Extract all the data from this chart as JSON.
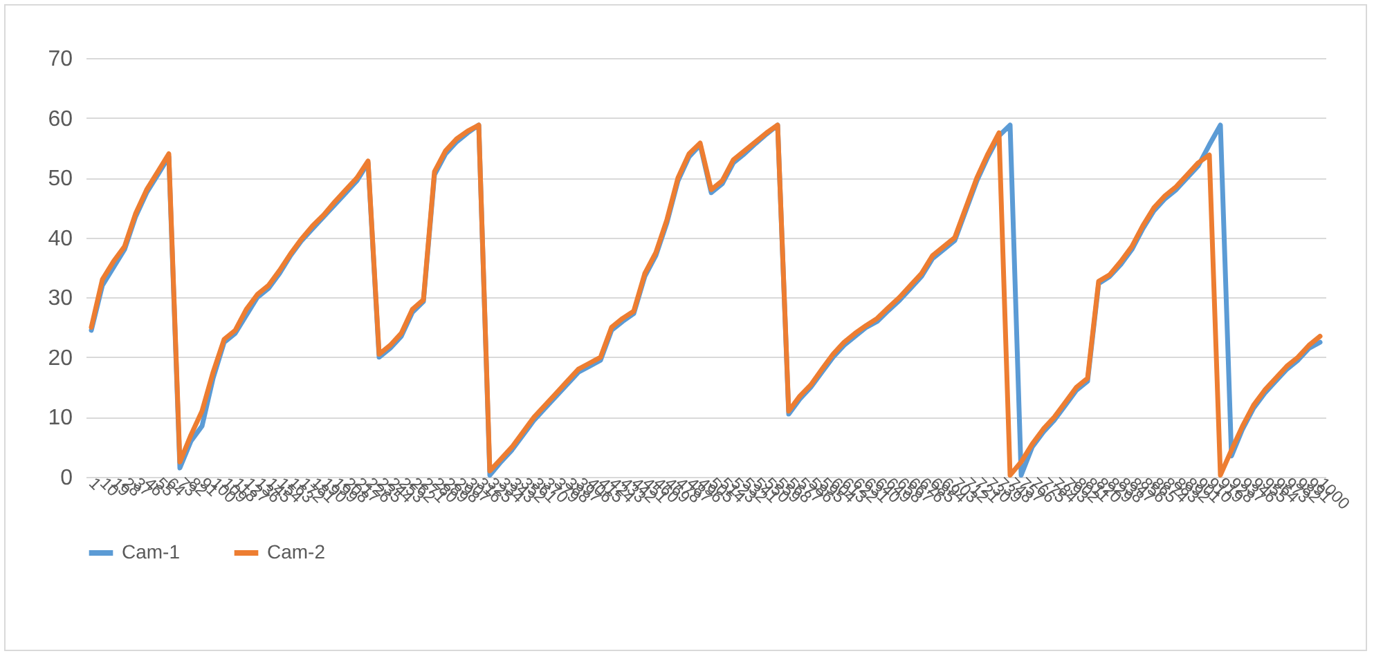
{
  "chart_data": {
    "type": "line",
    "categories": [
      "1",
      "10",
      "19",
      "28",
      "37",
      "46",
      "55",
      "64",
      "73",
      "82",
      "91",
      "100",
      "109",
      "118",
      "127",
      "136",
      "145",
      "154",
      "163",
      "172",
      "181",
      "190",
      "199",
      "208",
      "217",
      "226",
      "235",
      "244",
      "253",
      "262",
      "271",
      "280",
      "289",
      "298",
      "307",
      "316",
      "325",
      "334",
      "343",
      "352",
      "361",
      "370",
      "379",
      "388",
      "397",
      "406",
      "415",
      "424",
      "433",
      "442",
      "451",
      "460",
      "469",
      "478",
      "487",
      "496",
      "505",
      "514",
      "523",
      "532",
      "541",
      "550",
      "559",
      "568",
      "577",
      "586",
      "595",
      "604",
      "613",
      "622",
      "631",
      "640",
      "649",
      "658",
      "667",
      "676",
      "685",
      "694",
      "703",
      "712",
      "721",
      "730",
      "739",
      "748",
      "757",
      "766",
      "775",
      "784",
      "793",
      "802",
      "811",
      "820",
      "829",
      "838",
      "847",
      "856",
      "865",
      "874",
      "883",
      "892",
      "901",
      "910",
      "919",
      "928",
      "937",
      "946",
      "955",
      "964",
      "973",
      "982",
      "991",
      "1000"
    ],
    "series": [
      {
        "name": "Cam-1",
        "color": "#5b9bd5",
        "values": [
          24.5,
          32,
          35,
          38,
          43.5,
          47.5,
          50.5,
          53.5,
          1.5,
          6,
          8.5,
          16.5,
          22.5,
          24,
          27,
          30,
          31.5,
          34,
          37,
          39.5,
          41.5,
          43.5,
          45.5,
          47.5,
          49.5,
          52.5,
          20,
          21.5,
          23.5,
          27.5,
          29.3,
          50.5,
          54,
          56,
          57.5,
          58.8,
          0.3,
          2.5,
          4.5,
          7,
          9.5,
          11.5,
          13.5,
          15.5,
          17.5,
          18.5,
          19.5,
          24.5,
          26,
          27.3,
          33.5,
          37,
          42.5,
          49.5,
          53.5,
          55.5,
          47.5,
          49,
          52.5,
          54,
          55.7,
          57.3,
          58.8,
          10.5,
          13,
          15,
          17.5,
          20,
          22,
          23.5,
          25,
          26,
          27.8,
          29.5,
          31.5,
          33.5,
          36.5,
          38,
          39.5,
          44.5,
          49.5,
          53.5,
          57,
          58.8,
          0.3,
          5,
          7.5,
          9.5,
          12,
          14.5,
          16,
          32.3,
          33.5,
          35.5,
          38,
          41.5,
          44.5,
          46.5,
          48,
          50,
          52,
          55.5,
          58.8,
          3.5,
          8,
          11.5,
          14,
          16,
          18,
          19.5,
          21.5,
          22.5
        ]
      },
      {
        "name": "Cam-2",
        "color": "#ed7d31",
        "values": [
          25,
          33,
          36,
          38.5,
          44,
          48,
          51,
          54,
          2.5,
          7,
          11,
          17.5,
          23,
          24.5,
          28,
          30.5,
          32,
          34.5,
          37.3,
          39.8,
          42,
          43.8,
          46,
          48,
          50,
          52.8,
          20.5,
          22,
          24,
          28,
          29.6,
          51,
          54.5,
          56.5,
          57.8,
          58.8,
          1,
          3,
          5,
          7.5,
          10,
          12,
          14,
          16,
          18,
          19,
          20,
          25,
          26.5,
          27.7,
          34,
          37.5,
          43,
          50,
          54,
          55.8,
          48,
          49.5,
          53,
          54.5,
          56,
          57.5,
          58.8,
          11,
          13.5,
          15.4,
          18,
          20.5,
          22.5,
          24,
          25.3,
          26.5,
          28.3,
          30,
          32,
          34,
          37,
          38.5,
          40,
          45,
          50,
          54,
          57.5,
          0.3,
          2.5,
          5.5,
          8,
          10,
          12.5,
          15,
          16.5,
          32.7,
          33.8,
          36,
          38.5,
          42,
          45,
          47,
          48.5,
          50.5,
          52.5,
          53.8,
          0.3,
          4.5,
          8.5,
          12,
          14.5,
          16.5,
          18.5,
          20,
          22,
          23.5
        ]
      }
    ],
    "ylim": [
      0,
      70
    ],
    "yticks": [
      0,
      10,
      20,
      30,
      40,
      50,
      60,
      70
    ],
    "grid": "y",
    "legend": "bottom",
    "line_style": "solid",
    "marker": "none"
  }
}
